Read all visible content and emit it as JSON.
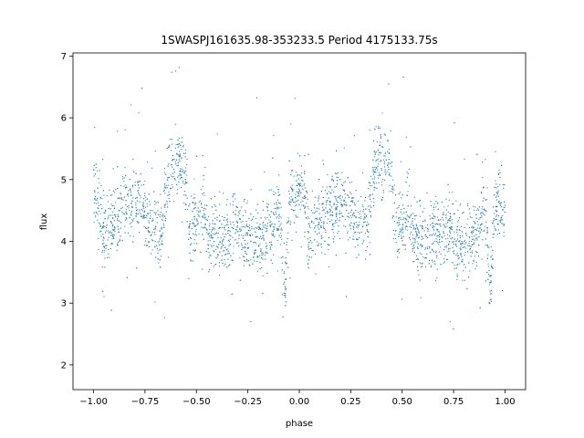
{
  "chart_data": {
    "type": "scatter",
    "title": "1SWASPJ161635.98-353233.5 Period 4175133.75s",
    "xlabel": "phase",
    "ylabel": "flux",
    "xlim": [
      -1.1,
      1.1
    ],
    "ylim": [
      1.6,
      7.05
    ],
    "xticks": [
      -1.0,
      -0.75,
      -0.5,
      -0.25,
      0.0,
      0.25,
      0.5,
      0.75,
      1.0
    ],
    "xtick_labels": [
      "−1.00",
      "−0.75",
      "−0.50",
      "−0.25",
      "0.00",
      "0.25",
      "0.50",
      "0.75",
      "1.00"
    ],
    "yticks": [
      2,
      3,
      4,
      5,
      6,
      7
    ],
    "ytick_labels": [
      "2",
      "3",
      "4",
      "5",
      "6",
      "7"
    ],
    "grid": false,
    "series": [
      {
        "color": "#1f77b4",
        "marker_size": 0.6,
        "curve": [
          [
            -1.0,
            4.9
          ],
          [
            -0.98,
            4.8
          ],
          [
            -0.95,
            4.1
          ],
          [
            -0.92,
            4.3
          ],
          [
            -0.88,
            4.4
          ],
          [
            -0.85,
            4.6
          ],
          [
            -0.82,
            4.5
          ],
          [
            -0.78,
            4.7
          ],
          [
            -0.75,
            4.5
          ],
          [
            -0.72,
            4.2
          ],
          [
            -0.7,
            4.3
          ],
          [
            -0.67,
            4.2
          ],
          [
            -0.63,
            5.3
          ],
          [
            -0.6,
            5.3
          ],
          [
            -0.56,
            5.2
          ],
          [
            -0.53,
            4.2
          ],
          [
            -0.5,
            4.3
          ],
          [
            -0.47,
            4.6
          ],
          [
            -0.44,
            4.1
          ],
          [
            -0.4,
            4.0
          ],
          [
            -0.35,
            4.1
          ],
          [
            -0.3,
            4.2
          ],
          [
            -0.25,
            4.1
          ],
          [
            -0.2,
            4.0
          ],
          [
            -0.15,
            4.1
          ],
          [
            -0.12,
            4.3
          ],
          [
            -0.1,
            4.6
          ],
          [
            -0.07,
            3.2
          ],
          [
            -0.05,
            4.7
          ],
          [
            -0.02,
            4.6
          ],
          [
            0.0,
            4.9
          ],
          [
            0.02,
            4.8
          ],
          [
            0.05,
            4.1
          ],
          [
            0.08,
            4.3
          ],
          [
            0.12,
            4.4
          ],
          [
            0.15,
            4.6
          ],
          [
            0.18,
            4.5
          ],
          [
            0.22,
            4.7
          ],
          [
            0.25,
            4.5
          ],
          [
            0.28,
            4.2
          ],
          [
            0.3,
            4.3
          ],
          [
            0.33,
            4.2
          ],
          [
            0.37,
            5.3
          ],
          [
            0.4,
            5.3
          ],
          [
            0.44,
            5.2
          ],
          [
            0.47,
            4.2
          ],
          [
            0.5,
            4.3
          ],
          [
            0.53,
            4.6
          ],
          [
            0.56,
            4.1
          ],
          [
            0.6,
            4.0
          ],
          [
            0.65,
            4.1
          ],
          [
            0.7,
            4.2
          ],
          [
            0.75,
            4.1
          ],
          [
            0.8,
            4.0
          ],
          [
            0.85,
            4.1
          ],
          [
            0.88,
            4.3
          ],
          [
            0.9,
            4.6
          ],
          [
            0.93,
            3.2
          ],
          [
            0.95,
            4.7
          ],
          [
            0.98,
            4.6
          ],
          [
            1.0,
            4.5
          ]
        ]
      }
    ]
  }
}
